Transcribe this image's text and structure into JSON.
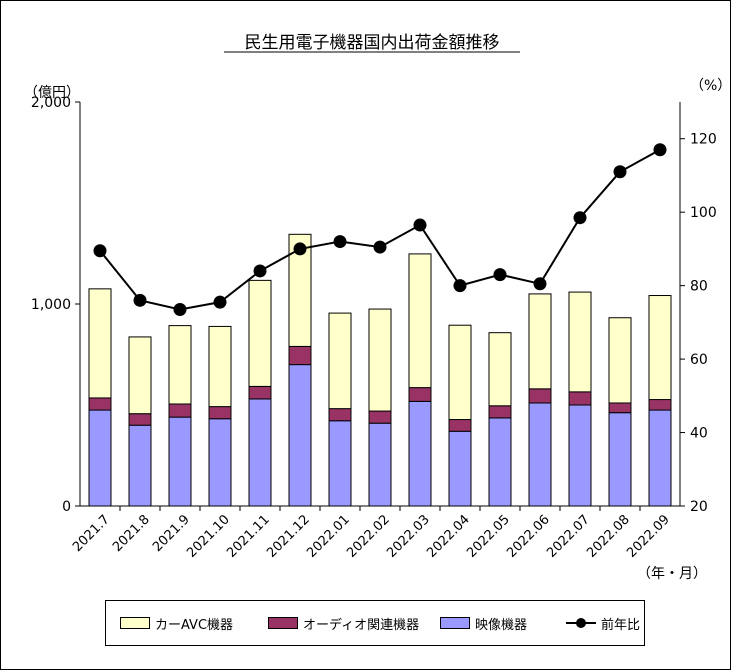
{
  "chart_data": {
    "type": "bar+line",
    "title": "民生用電子機器国内出荷金額推移",
    "y_left_unit": "（億円）",
    "y_right_unit": "（%）",
    "x_unit": "（年・月）",
    "categories": [
      "2021.7",
      "2021.8",
      "2021.9",
      "2021.10",
      "2021.11",
      "2021.12",
      "2022.01",
      "2022.02",
      "2022.03",
      "2022.04",
      "2022.05",
      "2022.06",
      "2022.07",
      "2022.08",
      "2022.09"
    ],
    "ylim_left": [
      0,
      2000
    ],
    "yticks_left": [
      0,
      1000,
      2000
    ],
    "ytick_labels_left": [
      "0",
      "1,000",
      "2,000"
    ],
    "ylim_right": [
      20,
      130
    ],
    "yticks_right": [
      20,
      40,
      60,
      80,
      100,
      120
    ],
    "ytick_labels_right": [
      "20",
      "40",
      "60",
      "80",
      "100",
      "120"
    ],
    "stacked_series": [
      {
        "name": "映像機器",
        "axis": "left",
        "color": "#9999ff",
        "values": [
          475,
          400,
          440,
          432,
          530,
          700,
          422,
          410,
          518,
          370,
          436,
          510,
          500,
          462,
          475
        ]
      },
      {
        "name": "オーディオ関連機器",
        "axis": "left",
        "color": "#993366",
        "values": [
          60,
          57,
          65,
          60,
          62,
          90,
          60,
          60,
          68,
          58,
          60,
          70,
          65,
          48,
          52
        ]
      },
      {
        "name": "カーAVC機器",
        "axis": "left",
        "color": "#ffffcc",
        "values": [
          540,
          380,
          388,
          397,
          525,
          555,
          473,
          505,
          662,
          467,
          362,
          470,
          494,
          422,
          515
        ]
      }
    ],
    "line_series": {
      "name": "前年比",
      "axis": "right",
      "color": "#000000",
      "values": [
        89.5,
        76,
        73.5,
        75.5,
        84,
        90,
        92,
        90.5,
        96.5,
        80,
        83,
        80.5,
        98.5,
        111,
        117
      ]
    },
    "legend": {
      "placement": "bottom",
      "order": [
        "カーAVC機器",
        "オーディオ関連機器",
        "映像機器",
        "前年比"
      ]
    },
    "grid": false
  }
}
